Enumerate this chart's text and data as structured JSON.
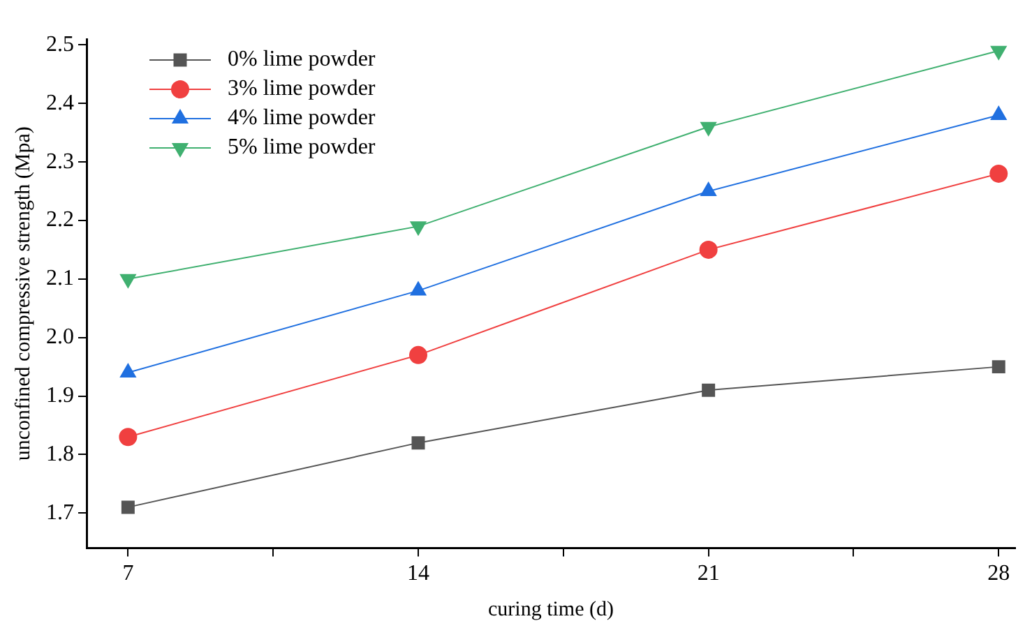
{
  "chart_data": {
    "type": "line",
    "xlabel": "curing time (d)",
    "ylabel": "unconfined compressive strength (Mpa)",
    "x": [
      7,
      14,
      21,
      28
    ],
    "series": [
      {
        "name": "0% lime powder",
        "color": "#555555",
        "marker": "square",
        "values": [
          1.71,
          1.82,
          1.91,
          1.95
        ]
      },
      {
        "name": "3% lime powder",
        "color": "#f04040",
        "marker": "circle",
        "values": [
          1.83,
          1.97,
          2.15,
          2.28
        ]
      },
      {
        "name": "4% lime powder",
        "color": "#2070e0",
        "marker": "triangle",
        "values": [
          1.94,
          2.08,
          2.25,
          2.38
        ]
      },
      {
        "name": "5% lime powder",
        "color": "#40b070",
        "marker": "triangle-down",
        "values": [
          2.1,
          2.19,
          2.36,
          2.49
        ]
      }
    ],
    "xlim": [
      6,
      28.4
    ],
    "xticks": [
      7,
      {
        "value": 10.5,
        "label": null
      },
      14,
      {
        "value": 17.5,
        "label": null
      },
      21,
      {
        "value": 24.5,
        "label": null
      },
      28
    ],
    "ylim": [
      1.64,
      2.51
    ],
    "yticks": [
      1.7,
      1.8,
      1.9,
      {
        "value": 2,
        "label": "2.0"
      },
      2.1,
      2.2,
      2.3,
      2.4,
      2.5
    ],
    "grid": false,
    "legend": "top left",
    "line_style": "solid"
  }
}
